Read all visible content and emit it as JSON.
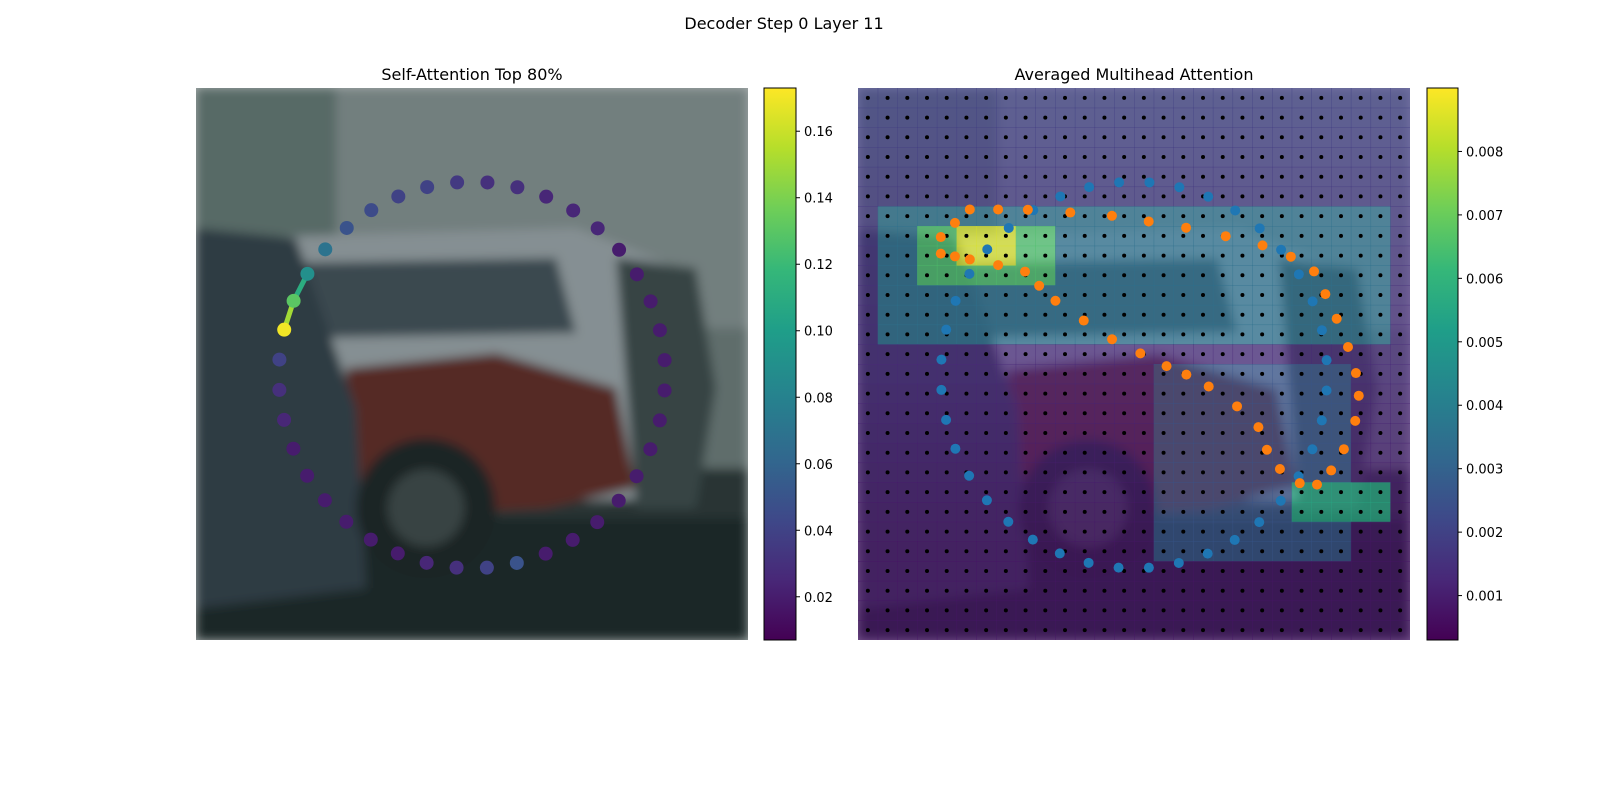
{
  "figure": {
    "suptitle": "Decoder Step 0 Layer 11"
  },
  "colors": {
    "viridis": [
      "#440154",
      "#482878",
      "#3e4989",
      "#31688e",
      "#26828e",
      "#1f9e89",
      "#35b779",
      "#6ece58",
      "#b5de2b",
      "#fde725"
    ],
    "query_points": "#1f77b4",
    "reference_points": "#ff7f0e",
    "grid_dots": "#000000"
  },
  "chart_data": [
    {
      "type": "scatter",
      "title": "Self-Attention Top 80%",
      "background": "blurred photo of parked cars (white SUV, red car) against a building wall",
      "xlim": [
        0,
        1
      ],
      "ylim": [
        0,
        1
      ],
      "n_points": 40,
      "contour": {
        "shape": "circle",
        "center": [
          0.5,
          0.52
        ],
        "radius": 0.35
      },
      "attention_values": [
        0.04,
        0.03,
        0.025,
        0.02,
        0.02,
        0.02,
        0.02,
        0.02,
        0.02,
        0.025,
        0.03,
        0.04,
        0.05,
        0.02,
        0.02,
        0.02,
        0.02,
        0.02,
        0.02,
        0.02,
        0.02,
        0.02,
        0.02,
        0.02,
        0.02,
        0.02,
        0.025,
        0.025,
        0.025,
        0.03,
        0.03,
        0.035,
        0.04,
        0.04,
        0.045,
        0.05,
        0.07,
        0.09,
        0.13,
        0.17
      ],
      "highlighted_links": [
        [
          39,
          38
        ],
        [
          38,
          37
        ]
      ],
      "colorbar": {
        "vmin": 0.007,
        "vmax": 0.173,
        "ticks": [
          "0.02",
          "0.04",
          "0.06",
          "0.08",
          "0.10",
          "0.12",
          "0.14",
          "0.16"
        ]
      }
    },
    {
      "type": "heatmap",
      "title": "Averaged Multihead Attention",
      "grid_size": [
        28,
        28
      ],
      "background": "same photo dimmed under attention heatmap",
      "hot_regions": [
        {
          "x": [
            0.1,
            0.36
          ],
          "y": [
            0.25,
            0.35
          ],
          "value": 0.0065
        },
        {
          "x": [
            0.18,
            0.29
          ],
          "y": [
            0.25,
            0.32
          ],
          "value": 0.0085
        },
        {
          "x": [
            0.78,
            0.96
          ],
          "y": [
            0.7,
            0.8
          ],
          "value": 0.0055
        },
        {
          "x": [
            0.05,
            0.95
          ],
          "y": [
            0.22,
            0.45
          ],
          "value": 0.0035
        }
      ],
      "series": [
        {
          "name": "query_points",
          "contour": {
            "shape": "circle",
            "center": [
              0.5,
              0.52
            ],
            "radius": 0.35
          },
          "n_points": 40
        },
        {
          "name": "reference_points",
          "contour": "reverse-S curve",
          "n_points": 40
        }
      ],
      "colorbar": {
        "vmin": 0.0003,
        "vmax": 0.009,
        "ticks": [
          "0.001",
          "0.002",
          "0.003",
          "0.004",
          "0.005",
          "0.006",
          "0.007",
          "0.008"
        ]
      }
    }
  ]
}
